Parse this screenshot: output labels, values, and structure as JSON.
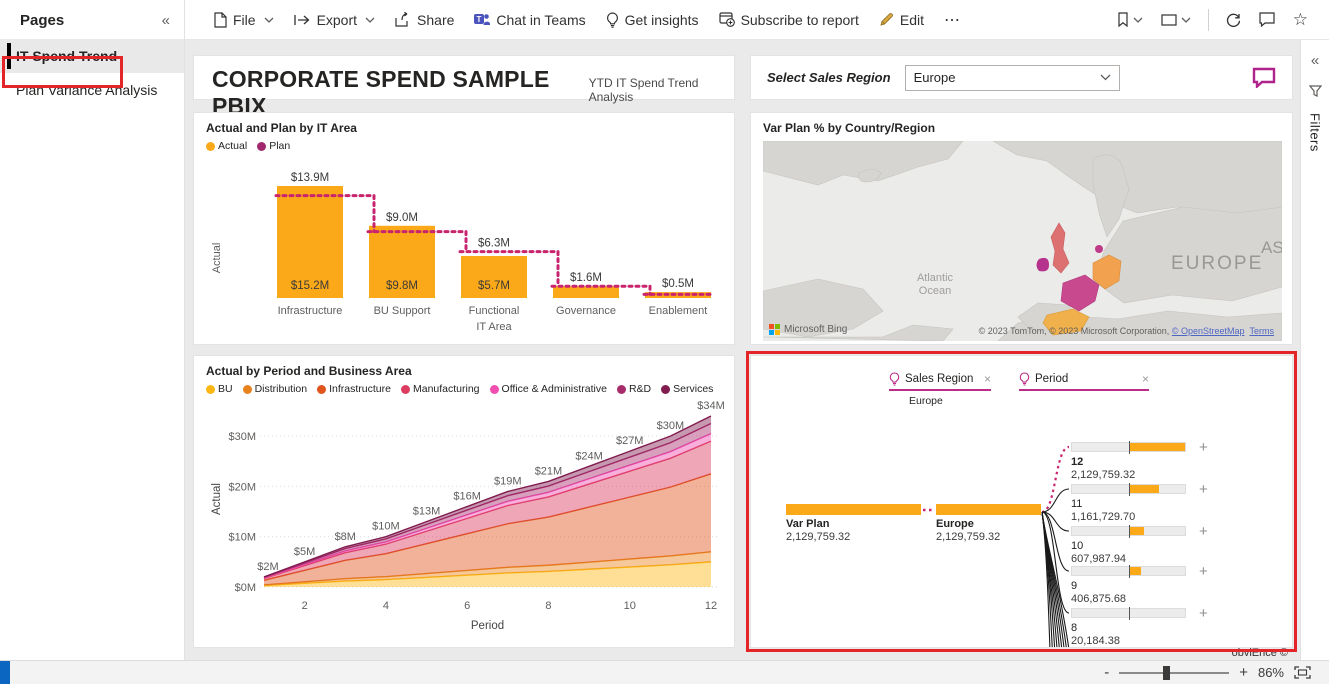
{
  "icons": {
    "collapse": "«",
    "ellipsis": "⋯",
    "close": "×",
    "plus": "+",
    "minus": "-",
    "star": "☆"
  },
  "pages_panel": {
    "title": "Pages",
    "items": [
      {
        "label": "IT Spend Trend",
        "selected": true
      },
      {
        "label": "Plan Variance Analysis",
        "selected": false
      }
    ]
  },
  "toolbar": {
    "file": "File",
    "export": "Export",
    "share": "Share",
    "chat": "Chat in Teams",
    "insights": "Get insights",
    "subscribe": "Subscribe to report",
    "edit": "Edit"
  },
  "header_card": {
    "title": "CORPORATE SPEND SAMPLE PBIX",
    "subtitle": "YTD IT Spend Trend Analysis"
  },
  "slicer": {
    "label": "Select Sales Region",
    "value": "Europe"
  },
  "filters_rail": {
    "label": "Filters"
  },
  "map_visual": {
    "title": "Var Plan % by Country/Region",
    "labels": {
      "europe": "EUROPE",
      "asia": "AS",
      "ocean1": "Atlantic",
      "ocean2": "Ocean"
    },
    "bing": "Microsoft Bing",
    "attribution": "© 2023 TomTom, © 2023 Microsoft Corporation, ",
    "osm_link": "© OpenStreetMap",
    "terms_link": "Terms"
  },
  "chart_data": [
    {
      "type": "bar",
      "title": "Actual and Plan by IT Area",
      "categories": [
        "Infrastructure",
        "BU Support",
        "Functional",
        "Governance",
        "Enablement"
      ],
      "series": [
        {
          "name": "Actual",
          "color": "#fba919",
          "values": [
            15.2,
            9.8,
            5.7,
            1.6,
            0.8
          ],
          "labels": [
            "$15.2M",
            "$9.8M",
            "$5.7M",
            "",
            ""
          ]
        },
        {
          "name": "Plan",
          "color": "#a1286d",
          "line_color": "#c9256e",
          "values": [
            13.9,
            9.0,
            6.3,
            1.6,
            0.5
          ],
          "labels": [
            "$13.9M",
            "$9.0M",
            "$6.3M",
            "$1.6M",
            "$0.5M"
          ]
        }
      ],
      "xlabel": "IT Area",
      "ylabel": "Actual",
      "ylim": [
        0,
        16
      ]
    },
    {
      "type": "area",
      "title": "Actual by Period and Business Area",
      "x": [
        1,
        2,
        3,
        4,
        5,
        6,
        7,
        8,
        9,
        10,
        11,
        12
      ],
      "totals": [
        2,
        5,
        8,
        10,
        13,
        16,
        19,
        21,
        24,
        27,
        30,
        34
      ],
      "total_labels": [
        "$2M",
        "$5M",
        "$8M",
        "$10M",
        "$13M",
        "$16M",
        "$19M",
        "$21M",
        "$24M",
        "$27M",
        "$30M",
        "$34M"
      ],
      "series": [
        {
          "name": "BU",
          "color": "#fcb714",
          "share": 0.147
        },
        {
          "name": "Distribution",
          "color": "#e8821d",
          "share": 0.059
        },
        {
          "name": "Infrastructure",
          "color": "#e0541d",
          "share": 0.456
        },
        {
          "name": "Manufacturing",
          "color": "#dc3c5f",
          "share": 0.191
        },
        {
          "name": "Office & Administrative",
          "color": "#f04fb0",
          "share": 0.044
        },
        {
          "name": "R&D",
          "color": "#a82c6c",
          "share": 0.059
        },
        {
          "name": "Services",
          "color": "#811c4f",
          "share": 0.044
        }
      ],
      "xticks": [
        "2",
        "4",
        "6",
        "8",
        "10",
        "12"
      ],
      "yticks": [
        "$0M",
        "$10M",
        "$20M",
        "$30M"
      ],
      "ytick_vals": [
        0,
        10,
        20,
        30
      ],
      "xlabel": "Period",
      "ylabel": "Actual",
      "ylim": [
        0,
        35
      ]
    },
    {
      "type": "decomposition-tree",
      "chips": [
        {
          "label": "Sales Region",
          "sub": "Europe",
          "wide": false
        },
        {
          "label": "Period",
          "sub": "",
          "wide": true
        }
      ],
      "root": {
        "label": "Var Plan",
        "value": "2,129,759.32"
      },
      "level1": {
        "label": "Europe",
        "value": "2,129,759.32"
      },
      "children": [
        {
          "label": "12",
          "value": "2,129,759.32",
          "fill": 1.0,
          "selected": true
        },
        {
          "label": "11",
          "value": "1,161,729.70",
          "fill": 0.545,
          "selected": false
        },
        {
          "label": "10",
          "value": "607,987.94",
          "fill": 0.285,
          "selected": false
        },
        {
          "label": "9",
          "value": "406,875.68",
          "fill": 0.23,
          "selected": false
        },
        {
          "label": "8",
          "value": "20,184.38",
          "fill": 0.015,
          "selected": false
        }
      ]
    }
  ],
  "footer": {
    "credit": "obviEnce ©",
    "zoom": "86%"
  }
}
